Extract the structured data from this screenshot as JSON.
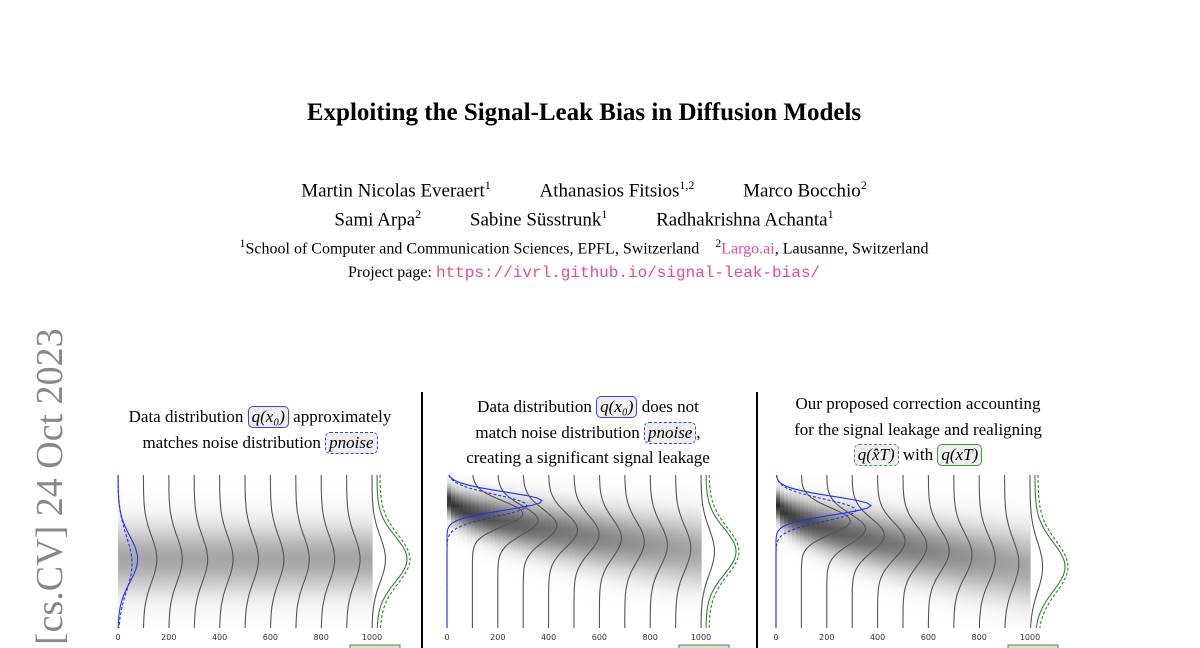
{
  "paper": {
    "title": "Exploiting the Signal-Leak Bias in Diffusion Models",
    "authors": [
      {
        "name": "Martin Nicolas Everaert",
        "aff": "1"
      },
      {
        "name": "Athanasios Fitsios",
        "aff": "1,2"
      },
      {
        "name": "Marco Bocchio",
        "aff": "2"
      },
      {
        "name": "Sami Arpa",
        "aff": "2"
      },
      {
        "name": "Sabine Süsstrunk",
        "aff": "1"
      },
      {
        "name": "Radhakrishna Achanta",
        "aff": "1"
      }
    ],
    "affiliations": [
      {
        "num": "1",
        "text": "School of Computer and Communication Sciences, EPFL, Switzerland"
      },
      {
        "num": "2",
        "link": "Largo.ai",
        "text": ", Lausanne, Switzerland"
      }
    ],
    "project_label": "Project page: ",
    "project_url": "https://ivrl.github.io/signal-leak-bias/",
    "arxiv_stamp": "[cs.CV]  24 Oct 2023",
    "link_color": "#e8489a"
  },
  "figure": {
    "panels": [
      {
        "caption": {
          "l1a": "Data distribution ",
          "m1": "q(x₀)",
          "l1b": " approximately",
          "l2a": "matches noise distribution ",
          "m2": "pnoise"
        }
      },
      {
        "caption": {
          "l1a": "Data distribution ",
          "m1": "q(x₀)",
          "l1b": " does not",
          "l2a": "match noise distribution ",
          "m2": "pnoise",
          "l2b": ",",
          "l3": "creating a significant signal leakage"
        }
      },
      {
        "caption": {
          "l1": "Our proposed correction accounting",
          "l2": "for the signal leakage and realigning",
          "m1": "q(x̂T)",
          "mid": " with ",
          "m2": "q(xT)"
        }
      }
    ]
  },
  "chart_data": [
    {
      "type": "area",
      "xticks": [
        0,
        200,
        400,
        600,
        800,
        1000
      ],
      "xlim": [
        0,
        1000
      ],
      "mu0": 0.55,
      "sig0": 0.15,
      "muT": 0.55,
      "sigT": 0.15,
      "dark0": 0.35,
      "darkT": 0.35,
      "data_color": "#2233ee",
      "noise_color": "#2a8a2a"
    },
    {
      "type": "area",
      "xticks": [
        0,
        200,
        400,
        600,
        800,
        1000
      ],
      "xlim": [
        0,
        1000
      ],
      "mu0": 0.17,
      "sig0": 0.06,
      "muT": 0.5,
      "sigT": 0.15,
      "dark0": 0.85,
      "darkT": 0.35,
      "data_color": "#2233ee",
      "noise_color": "#2a8a2a"
    },
    {
      "type": "area",
      "xticks": [
        0,
        200,
        400,
        600,
        800,
        1000
      ],
      "xlim": [
        0,
        1000
      ],
      "mu0": 0.2,
      "sig0": 0.06,
      "muT": 0.6,
      "sigT": 0.16,
      "dark0": 0.85,
      "darkT": 0.35,
      "data_color": "#2233ee",
      "noise_color": "#2a8a2a"
    }
  ]
}
